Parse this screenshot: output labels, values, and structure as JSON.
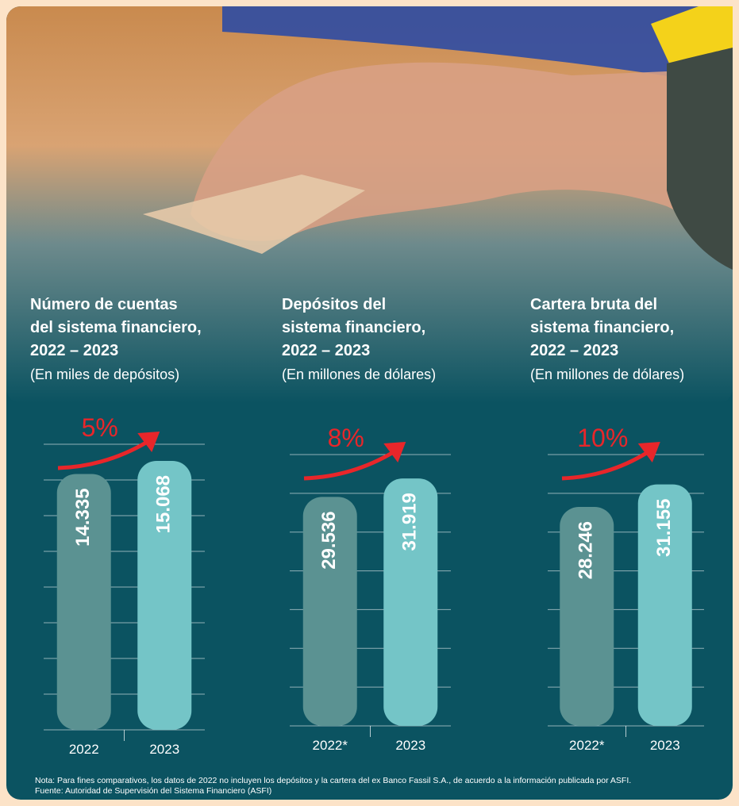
{
  "chart_data": [
    {
      "type": "bar",
      "title": [
        "Número de cuentas",
        "del sistema financiero,",
        "2022 – 2023"
      ],
      "subtitle": "(En miles de depósitos)",
      "annotation": "5%",
      "categories": [
        "2022",
        "2023"
      ],
      "values": [
        14335,
        15068
      ],
      "value_labels": [
        "14.335",
        "15.068"
      ],
      "colors": [
        "#5b9292",
        "#74c5c7"
      ],
      "ylim": [
        0,
        16000
      ],
      "yticks": [
        0,
        2000,
        4000,
        6000,
        8000,
        10000,
        12000,
        14000,
        16000
      ],
      "grid": true
    },
    {
      "type": "bar",
      "title": [
        "Depósitos del",
        "sistema financiero,",
        "2022 – 2023"
      ],
      "subtitle": "(En millones de dólares)",
      "annotation": "8%",
      "categories": [
        "2022*",
        "2023"
      ],
      "values": [
        29536,
        31919
      ],
      "value_labels": [
        "29.536",
        "31.919"
      ],
      "colors": [
        "#5b9292",
        "#74c5c7"
      ],
      "ylim": [
        0,
        35000
      ],
      "yticks": [
        0,
        5000,
        10000,
        15000,
        20000,
        25000,
        30000,
        35000
      ],
      "grid": true
    },
    {
      "type": "bar",
      "title": [
        "Cartera bruta del",
        "sistema financiero,",
        "2022 – 2023"
      ],
      "subtitle": "(En millones de dólares)",
      "annotation": "10%",
      "categories": [
        "2022*",
        "2023"
      ],
      "values": [
        28246,
        31155
      ],
      "value_labels": [
        "28.246",
        "31.155"
      ],
      "colors": [
        "#5b9292",
        "#74c5c7"
      ],
      "ylim": [
        0,
        35000
      ],
      "yticks": [
        0,
        5000,
        10000,
        15000,
        20000,
        25000,
        30000,
        35000
      ],
      "grid": true
    }
  ],
  "footer": {
    "note": "Nota: Para fines comparativos, los datos de 2022 no incluyen los depósitos y la cartera del ex Banco Fassil S.A., de acuerdo a la información publicada por ASFI.",
    "source": "Fuente: Autoridad de Supervisión del Sistema Financiero (ASFI)"
  }
}
